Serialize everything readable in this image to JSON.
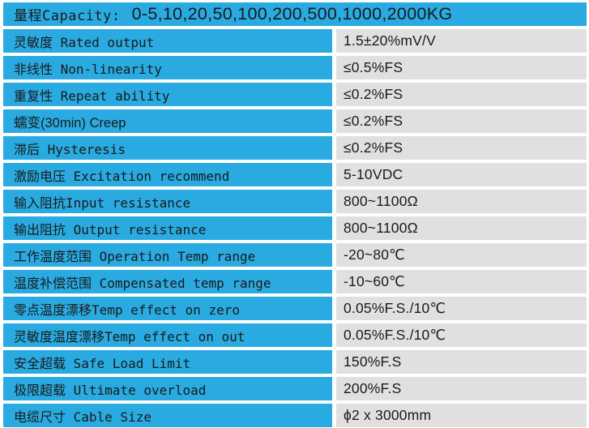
{
  "colors": {
    "accent_blue": "#29ABE2",
    "value_cell_gray": "#E0E0E0",
    "separator_white": "#FFFFFF",
    "text": "#1A1A1A"
  },
  "table": {
    "header": {
      "label": "量程Capacity:",
      "value": "0-5,10,20,50,100,200,500,1000,2000KG"
    },
    "rows": [
      {
        "label": "灵敏度 Rated output",
        "value": "1.5±20%mV/V"
      },
      {
        "label": "非线性 Non-linearity",
        "value": "≤0.5%FS"
      },
      {
        "label": "重复性 Repeat ability",
        "value": "≤0.2%FS"
      },
      {
        "label": "蠕变(30min) Creep",
        "value": "≤0.2%FS"
      },
      {
        "label": "滞后 Hysteresis",
        "value": "≤0.2%FS"
      },
      {
        "label": "激励电压 Excitation recommend",
        "value": "5-10VDC"
      },
      {
        "label": "输入阻抗Input resistance",
        "value": "800~1100Ω"
      },
      {
        "label": "输出阻抗 Output resistance",
        "value": "800~1100Ω"
      },
      {
        "label": "工作温度范围 Operation Temp range",
        "value": "-20~80℃"
      },
      {
        "label": "温度补偿范围 Compensated temp range",
        "value": "-10~60℃"
      },
      {
        "label": "零点温度漂移Temp effect on zero",
        "value": "0.05%F.S./10℃"
      },
      {
        "label": "灵敏度温度漂移Temp effect on out",
        "value": "0.05%F.S./10℃"
      },
      {
        "label": "安全超载 Safe Load Limit",
        "value": "150%F.S"
      },
      {
        "label": "极限超载 Ultimate overload",
        "value": "200%F.S"
      },
      {
        "label": "电缆尺寸 Cable Size",
        "value": "ϕ2 x 3000mm"
      }
    ]
  }
}
